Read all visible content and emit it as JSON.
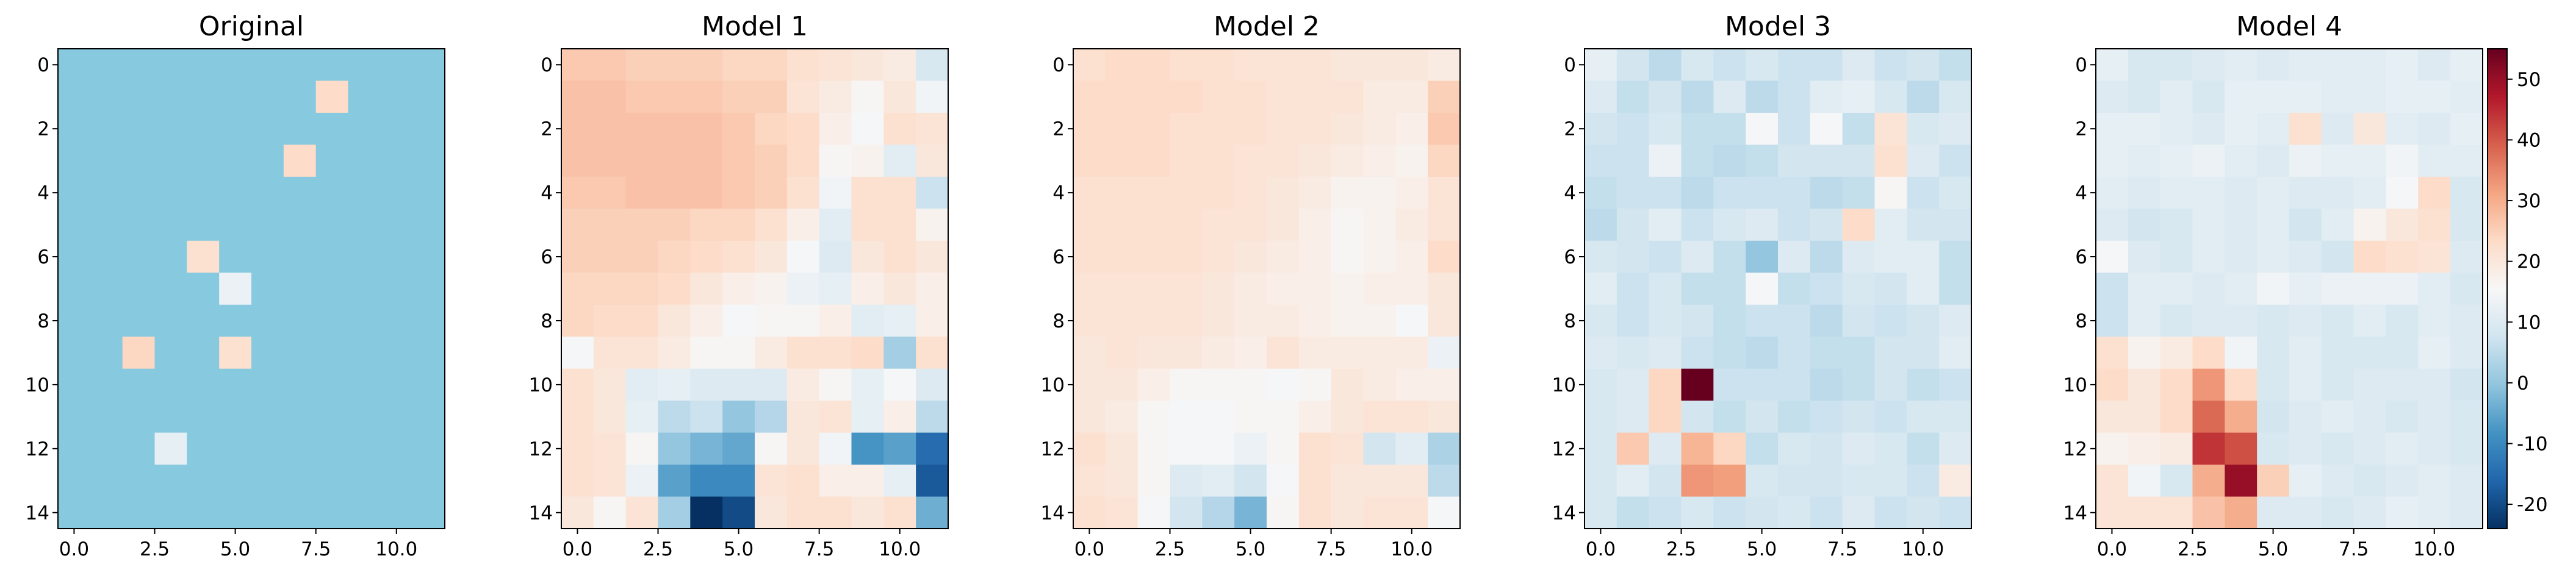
{
  "chart_data": {
    "type": "heatmap",
    "layout": "five panels in one row, shared colorbar on the right",
    "rows": 15,
    "cols": 12,
    "x_ticks": [
      "0.0",
      "2.5",
      "5.0",
      "7.5",
      "10.0"
    ],
    "x_tick_values": [
      0,
      2.5,
      5,
      7.5,
      10
    ],
    "y_ticks": [
      "0",
      "2",
      "4",
      "6",
      "8",
      "10",
      "12",
      "14"
    ],
    "y_tick_values": [
      0,
      2,
      4,
      6,
      8,
      10,
      12,
      14
    ],
    "colormap": "RdBu_r",
    "colorbar": {
      "vmin": -24,
      "vmax": 55,
      "ticks": [
        "-20",
        "-10",
        "0",
        "10",
        "20",
        "30",
        "40",
        "50"
      ],
      "tick_values": [
        -20,
        -10,
        0,
        10,
        20,
        30,
        40,
        50
      ]
    },
    "panels": [
      {
        "title": "Original",
        "values": [
          [
            0,
            0,
            0,
            0,
            0,
            0,
            0,
            0,
            0,
            0,
            0,
            0
          ],
          [
            0,
            0,
            0,
            0,
            0,
            0,
            0,
            0,
            23,
            0,
            0,
            0
          ],
          [
            0,
            0,
            0,
            0,
            0,
            0,
            0,
            0,
            0,
            0,
            0,
            0
          ],
          [
            0,
            0,
            0,
            0,
            0,
            0,
            0,
            23,
            0,
            0,
            0,
            0
          ],
          [
            0,
            0,
            0,
            0,
            0,
            0,
            0,
            0,
            0,
            0,
            0,
            0
          ],
          [
            0,
            0,
            0,
            0,
            0,
            0,
            0,
            0,
            0,
            0,
            0,
            0
          ],
          [
            0,
            0,
            0,
            0,
            22,
            0,
            0,
            0,
            0,
            0,
            0,
            0
          ],
          [
            0,
            0,
            0,
            0,
            0,
            13,
            0,
            0,
            0,
            0,
            0,
            0
          ],
          [
            0,
            0,
            0,
            0,
            0,
            0,
            0,
            0,
            0,
            0,
            0,
            0
          ],
          [
            0,
            0,
            24,
            0,
            0,
            22,
            0,
            0,
            0,
            0,
            0,
            0
          ],
          [
            0,
            0,
            0,
            0,
            0,
            0,
            0,
            0,
            0,
            0,
            0,
            0
          ],
          [
            0,
            0,
            0,
            0,
            0,
            0,
            0,
            0,
            0,
            0,
            0,
            0
          ],
          [
            0,
            0,
            0,
            12,
            0,
            0,
            0,
            0,
            0,
            0,
            0,
            0
          ],
          [
            0,
            0,
            0,
            0,
            0,
            0,
            0,
            0,
            0,
            0,
            0,
            0
          ],
          [
            0,
            0,
            0,
            0,
            0,
            0,
            0,
            0,
            0,
            0,
            0,
            0
          ]
        ]
      },
      {
        "title": "Model 1",
        "values": [
          [
            26,
            26,
            25,
            25,
            25,
            24,
            24,
            22,
            21,
            20,
            19,
            9
          ],
          [
            27,
            27,
            26,
            26,
            26,
            25,
            25,
            21,
            19,
            16,
            20,
            14
          ],
          [
            27,
            27,
            27,
            27,
            27,
            26,
            24,
            23,
            18,
            15,
            22,
            21
          ],
          [
            27,
            27,
            27,
            27,
            27,
            26,
            25,
            23,
            16,
            17,
            11,
            20
          ],
          [
            26,
            26,
            27,
            27,
            27,
            26,
            25,
            22,
            14,
            22,
            22,
            7
          ],
          [
            25,
            25,
            25,
            25,
            24,
            24,
            22,
            18,
            11,
            22,
            22,
            17
          ],
          [
            25,
            25,
            25,
            24,
            23,
            22,
            20,
            15,
            10,
            20,
            22,
            20
          ],
          [
            24,
            24,
            24,
            23,
            20,
            18,
            17,
            13,
            12,
            18,
            20,
            18
          ],
          [
            24,
            23,
            23,
            20,
            18,
            15,
            16,
            16,
            18,
            11,
            12,
            18
          ],
          [
            15,
            21,
            21,
            19,
            16,
            16,
            19,
            22,
            22,
            23,
            2,
            22
          ],
          [
            22,
            20,
            11,
            12,
            10,
            10,
            10,
            19,
            16,
            12,
            15,
            10
          ],
          [
            22,
            20,
            12,
            5,
            7,
            0,
            4,
            20,
            21,
            12,
            18,
            5
          ],
          [
            22,
            21,
            16,
            0,
            -3,
            -5,
            16,
            20,
            14,
            -8,
            -6,
            -15
          ],
          [
            22,
            21,
            13,
            -6,
            -10,
            -10,
            21,
            22,
            18,
            18,
            12,
            -18
          ],
          [
            20,
            16,
            21,
            2,
            -24,
            -20,
            20,
            22,
            22,
            20,
            22,
            -4
          ]
        ]
      },
      {
        "title": "Model 2",
        "values": [
          [
            22,
            23,
            23,
            22,
            22,
            21,
            21,
            21,
            20,
            20,
            20,
            19
          ],
          [
            23,
            23,
            23,
            23,
            22,
            22,
            21,
            21,
            21,
            19,
            19,
            25
          ],
          [
            23,
            23,
            23,
            22,
            22,
            22,
            21,
            21,
            20,
            19,
            18,
            26
          ],
          [
            23,
            23,
            23,
            22,
            22,
            21,
            21,
            20,
            19,
            18,
            17,
            24
          ],
          [
            22,
            22,
            22,
            22,
            22,
            21,
            20,
            19,
            17,
            17,
            18,
            21
          ],
          [
            22,
            22,
            22,
            22,
            21,
            21,
            20,
            18,
            16,
            17,
            19,
            21
          ],
          [
            22,
            22,
            22,
            22,
            21,
            20,
            19,
            18,
            16,
            17,
            18,
            23
          ],
          [
            21,
            21,
            21,
            21,
            20,
            19,
            18,
            18,
            17,
            18,
            18,
            20
          ],
          [
            21,
            21,
            21,
            21,
            20,
            19,
            19,
            18,
            17,
            17,
            15,
            20
          ],
          [
            20,
            21,
            20,
            20,
            19,
            18,
            21,
            19,
            19,
            19,
            19,
            13
          ],
          [
            20,
            20,
            18,
            16,
            16,
            16,
            15,
            16,
            20,
            19,
            18,
            18
          ],
          [
            20,
            19,
            16,
            15,
            15,
            16,
            16,
            18,
            20,
            21,
            21,
            20
          ],
          [
            22,
            20,
            16,
            15,
            15,
            13,
            16,
            22,
            21,
            8,
            11,
            3
          ],
          [
            21,
            20,
            16,
            10,
            11,
            8,
            15,
            22,
            20,
            20,
            20,
            5
          ],
          [
            22,
            21,
            15,
            8,
            4,
            -3,
            16,
            22,
            20,
            21,
            21,
            15
          ]
        ]
      },
      {
        "title": "Model 3",
        "values": [
          [
            12,
            8,
            5,
            9,
            7,
            9,
            7,
            7,
            10,
            7,
            8,
            6
          ],
          [
            10,
            6,
            8,
            5,
            10,
            5,
            7,
            11,
            12,
            9,
            5,
            9
          ],
          [
            8,
            7,
            9,
            6,
            6,
            15,
            7,
            15,
            6,
            21,
            9,
            10
          ],
          [
            7,
            7,
            13,
            6,
            5,
            6,
            8,
            8,
            8,
            22,
            10,
            7
          ],
          [
            6,
            7,
            7,
            5,
            7,
            7,
            7,
            5,
            6,
            16,
            7,
            9
          ],
          [
            5,
            8,
            11,
            7,
            9,
            10,
            7,
            8,
            23,
            11,
            8,
            8
          ],
          [
            9,
            8,
            7,
            10,
            6,
            0,
            10,
            5,
            10,
            11,
            11,
            6
          ],
          [
            11,
            7,
            9,
            6,
            6,
            15,
            6,
            7,
            9,
            8,
            11,
            6
          ],
          [
            9,
            7,
            9,
            8,
            6,
            7,
            7,
            5,
            8,
            7,
            8,
            10
          ],
          [
            10,
            9,
            10,
            7,
            6,
            5,
            7,
            6,
            6,
            8,
            8,
            11
          ],
          [
            9,
            10,
            24,
            55,
            7,
            7,
            7,
            5,
            6,
            8,
            6,
            7
          ],
          [
            9,
            10,
            24,
            8,
            6,
            8,
            6,
            7,
            8,
            7,
            9,
            9
          ],
          [
            9,
            26,
            10,
            29,
            24,
            6,
            9,
            8,
            10,
            9,
            6,
            10
          ],
          [
            9,
            11,
            8,
            33,
            32,
            9,
            8,
            8,
            9,
            9,
            7,
            19
          ],
          [
            9,
            6,
            7,
            9,
            7,
            8,
            9,
            7,
            10,
            7,
            8,
            7
          ]
        ]
      },
      {
        "title": "Model 4",
        "values": [
          [
            12,
            9,
            9,
            10,
            11,
            10,
            11,
            11,
            11,
            12,
            10,
            12
          ],
          [
            10,
            9,
            11,
            9,
            12,
            12,
            12,
            11,
            11,
            12,
            12,
            11
          ],
          [
            12,
            12,
            11,
            10,
            12,
            11,
            22,
            10,
            20,
            11,
            10,
            12
          ],
          [
            12,
            11,
            12,
            13,
            11,
            10,
            13,
            12,
            12,
            14,
            11,
            11
          ],
          [
            11,
            10,
            11,
            11,
            10,
            11,
            10,
            10,
            11,
            15,
            23,
            9
          ],
          [
            10,
            8,
            9,
            11,
            10,
            11,
            8,
            11,
            17,
            20,
            22,
            9
          ],
          [
            15,
            10,
            9,
            11,
            10,
            11,
            10,
            8,
            23,
            22,
            21,
            10
          ],
          [
            7,
            11,
            11,
            10,
            11,
            14,
            12,
            13,
            13,
            13,
            11,
            9
          ],
          [
            7,
            11,
            9,
            10,
            10,
            9,
            10,
            9,
            11,
            9,
            11,
            10
          ],
          [
            22,
            17,
            19,
            23,
            14,
            9,
            11,
            9,
            9,
            9,
            12,
            10
          ],
          [
            23,
            20,
            23,
            33,
            23,
            9,
            11,
            9,
            10,
            10,
            10,
            8
          ],
          [
            20,
            20,
            23,
            38,
            30,
            8,
            10,
            11,
            10,
            9,
            10,
            9
          ],
          [
            17,
            18,
            19,
            44,
            41,
            9,
            10,
            9,
            10,
            11,
            10,
            9
          ],
          [
            21,
            14,
            9,
            30,
            50,
            25,
            12,
            10,
            9,
            10,
            11,
            10
          ],
          [
            21,
            21,
            21,
            27,
            30,
            10,
            10,
            9,
            10,
            12,
            11,
            10
          ]
        ]
      }
    ]
  }
}
